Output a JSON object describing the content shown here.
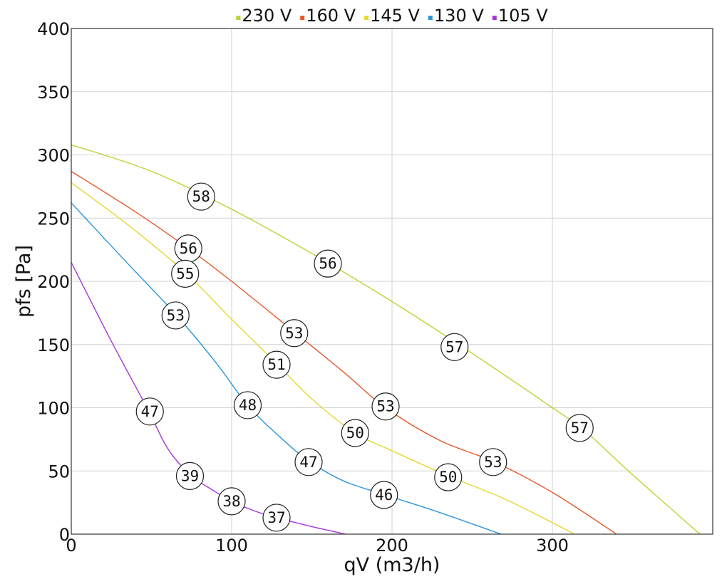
{
  "chart_data": {
    "type": "line",
    "xlabel": "qV (m3/h)",
    "ylabel": "pfs [Pa]",
    "xlim": [
      0,
      400
    ],
    "ylim": [
      0,
      400
    ],
    "x_ticks": [
      0,
      100,
      200,
      300
    ],
    "y_ticks": [
      0,
      50,
      100,
      150,
      200,
      250,
      300,
      350,
      400
    ],
    "grid": true,
    "legend_position": "top",
    "series": [
      {
        "name": "230 V",
        "color": "#b4d832",
        "points": [
          [
            0,
            308
          ],
          [
            50,
            287
          ],
          [
            100,
            257
          ],
          [
            150,
            222
          ],
          [
            200,
            184
          ],
          [
            250,
            143
          ],
          [
            300,
            100
          ],
          [
            320,
            82
          ],
          [
            350,
            47
          ],
          [
            392,
            0
          ]
        ],
        "markers": [
          {
            "x": 81,
            "y": 267,
            "label": "58"
          },
          {
            "x": 160,
            "y": 214,
            "label": "56"
          },
          {
            "x": 239,
            "y": 148,
            "label": "57"
          },
          {
            "x": 317,
            "y": 84,
            "label": "57"
          }
        ]
      },
      {
        "name": "160 V",
        "color": "#e8582c",
        "points": [
          [
            0,
            287
          ],
          [
            40,
            255
          ],
          [
            73,
            226
          ],
          [
            100,
            200
          ],
          [
            139,
            160
          ],
          [
            170,
            128
          ],
          [
            196,
            100
          ],
          [
            230,
            74
          ],
          [
            264,
            57
          ],
          [
            300,
            33
          ],
          [
            340,
            0
          ]
        ],
        "markers": [
          {
            "x": 73,
            "y": 226,
            "label": "56"
          },
          {
            "x": 139,
            "y": 159,
            "label": "53"
          },
          {
            "x": 196,
            "y": 101,
            "label": "53"
          },
          {
            "x": 263,
            "y": 57,
            "label": "53"
          }
        ]
      },
      {
        "name": "145 V",
        "color": "#e4d832",
        "points": [
          [
            0,
            278
          ],
          [
            35,
            245
          ],
          [
            71,
            207
          ],
          [
            100,
            170
          ],
          [
            128,
            135
          ],
          [
            150,
            107
          ],
          [
            177,
            80
          ],
          [
            200,
            66
          ],
          [
            235,
            46
          ],
          [
            270,
            28
          ],
          [
            314,
            0
          ]
        ],
        "markers": [
          {
            "x": 71,
            "y": 206,
            "label": "55"
          },
          {
            "x": 128,
            "y": 134,
            "label": "51"
          },
          {
            "x": 177,
            "y": 80,
            "label": "50"
          },
          {
            "x": 235,
            "y": 45,
            "label": "50"
          }
        ]
      },
      {
        "name": "130 V",
        "color": "#2c96dc",
        "points": [
          [
            0,
            262
          ],
          [
            33,
            217
          ],
          [
            65,
            174
          ],
          [
            90,
            136
          ],
          [
            110,
            102
          ],
          [
            130,
            77
          ],
          [
            148,
            58
          ],
          [
            170,
            42
          ],
          [
            196,
            31
          ],
          [
            230,
            17
          ],
          [
            268,
            0
          ]
        ],
        "markers": [
          {
            "x": 65,
            "y": 173,
            "label": "53"
          },
          {
            "x": 110,
            "y": 102,
            "label": "48"
          },
          {
            "x": 148,
            "y": 57,
            "label": "47"
          },
          {
            "x": 195,
            "y": 31,
            "label": "46"
          }
        ]
      },
      {
        "name": "105 V",
        "color": "#a436dc",
        "points": [
          [
            0,
            215
          ],
          [
            24,
            155
          ],
          [
            48,
            98
          ],
          [
            60,
            68
          ],
          [
            74,
            47
          ],
          [
            88,
            35
          ],
          [
            100,
            26
          ],
          [
            115,
            18
          ],
          [
            128,
            13
          ],
          [
            150,
            6
          ],
          [
            171,
            0
          ]
        ],
        "markers": [
          {
            "x": 49,
            "y": 97,
            "label": "47"
          },
          {
            "x": 74,
            "y": 46,
            "label": "39"
          },
          {
            "x": 100,
            "y": 26,
            "label": "38"
          },
          {
            "x": 128,
            "y": 13,
            "label": "37"
          }
        ]
      }
    ]
  }
}
